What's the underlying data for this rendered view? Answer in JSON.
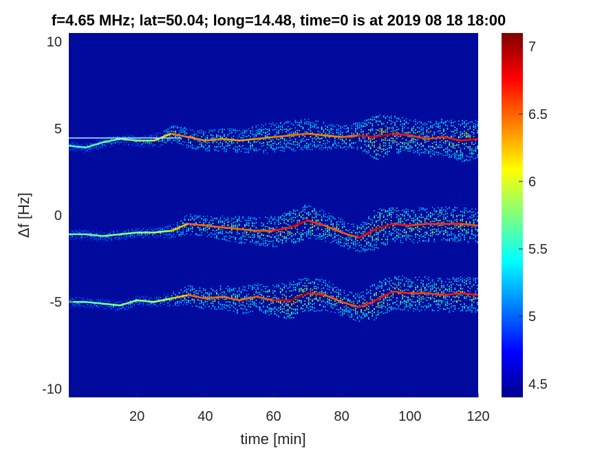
{
  "chart_data": {
    "type": "heatmap",
    "title": "f=4.65 MHz;  lat=50.04; long=14.48, time=0 is at 2019 08 18 18:00",
    "xlabel": "time [min]",
    "ylabel": "Δf [Hz]",
    "xlim": [
      0,
      120
    ],
    "ylim": [
      -10.5,
      10.5
    ],
    "xticks": [
      20,
      40,
      60,
      80,
      100,
      120
    ],
    "xtick_labels": [
      "20",
      "40",
      "60",
      "80",
      "100",
      "120"
    ],
    "yticks": [
      10,
      5,
      0,
      -5,
      -10
    ],
    "ytick_labels": [
      "10",
      "5",
      "0",
      "-5",
      "-10"
    ],
    "colorbar": {
      "range": [
        4.4,
        7.1
      ],
      "ticks": [
        7,
        6.5,
        6,
        5.5,
        5,
        4.5
      ],
      "tick_labels": [
        "7",
        "6.5",
        "6",
        "5.5",
        "5",
        "4.5"
      ],
      "colormap": "jet"
    },
    "background_color": "#000a9c",
    "series": [
      {
        "x": [
          0,
          5,
          10,
          15,
          20,
          25,
          30,
          35,
          40,
          45,
          50,
          55,
          60,
          65,
          70,
          75,
          80,
          85,
          90,
          95,
          100,
          105,
          110,
          115,
          120
        ],
        "y": [
          4.0,
          3.9,
          4.2,
          4.4,
          4.3,
          4.3,
          4.7,
          4.5,
          4.3,
          4.4,
          4.3,
          4.4,
          4.5,
          4.6,
          4.7,
          4.6,
          4.5,
          4.6,
          4.5,
          4.7,
          4.6,
          4.4,
          4.5,
          4.3,
          4.4
        ],
        "intensity": [
          5.6,
          5.6,
          5.7,
          5.7,
          5.8,
          5.9,
          6.5,
          6.4,
          6.4,
          6.4,
          6.3,
          6.4,
          6.4,
          6.5,
          6.5,
          6.4,
          6.4,
          6.6,
          7.0,
          6.8,
          6.6,
          6.6,
          6.6,
          6.8,
          6.7
        ],
        "spread": [
          0.3,
          0.3,
          0.3,
          0.3,
          0.3,
          0.4,
          0.5,
          0.6,
          0.6,
          0.7,
          0.7,
          0.8,
          0.9,
          0.9,
          0.9,
          0.8,
          0.7,
          0.8,
          1.3,
          1.1,
          1.0,
          1.0,
          1.1,
          1.2,
          1.1
        ]
      },
      {
        "x": [
          0,
          5,
          10,
          15,
          20,
          25,
          30,
          35,
          40,
          45,
          50,
          55,
          60,
          65,
          70,
          75,
          80,
          85,
          90,
          95,
          100,
          105,
          110,
          115,
          120
        ],
        "y": [
          -1.1,
          -1.1,
          -1.2,
          -1.1,
          -1.0,
          -1.0,
          -0.9,
          -0.5,
          -0.6,
          -0.7,
          -0.8,
          -0.9,
          -0.9,
          -0.7,
          -0.3,
          -0.6,
          -1.0,
          -1.3,
          -0.8,
          -0.5,
          -0.6,
          -0.5,
          -0.5,
          -0.5,
          -0.6
        ],
        "intensity": [
          5.7,
          5.7,
          5.7,
          5.8,
          5.8,
          5.8,
          6.0,
          6.5,
          6.5,
          6.5,
          6.5,
          6.5,
          6.6,
          6.8,
          6.8,
          6.5,
          6.5,
          6.6,
          6.9,
          6.8,
          6.6,
          6.6,
          6.7,
          6.6,
          6.5
        ],
        "spread": [
          0.3,
          0.3,
          0.3,
          0.3,
          0.3,
          0.3,
          0.4,
          0.6,
          0.6,
          0.7,
          0.8,
          0.8,
          0.9,
          1.0,
          1.0,
          0.9,
          0.8,
          0.8,
          1.2,
          1.0,
          1.0,
          1.0,
          1.0,
          1.0,
          1.0
        ]
      },
      {
        "x": [
          0,
          5,
          10,
          15,
          20,
          25,
          30,
          35,
          40,
          45,
          50,
          55,
          60,
          65,
          70,
          75,
          80,
          85,
          90,
          95,
          100,
          105,
          110,
          115,
          120
        ],
        "y": [
          -5.0,
          -5.0,
          -5.1,
          -5.2,
          -4.9,
          -5.0,
          -4.8,
          -4.6,
          -4.8,
          -4.7,
          -4.9,
          -4.7,
          -4.9,
          -4.9,
          -4.5,
          -4.6,
          -5.0,
          -5.3,
          -4.9,
          -4.4,
          -4.5,
          -4.5,
          -4.6,
          -4.5,
          -4.6
        ],
        "intensity": [
          5.7,
          5.7,
          5.7,
          5.8,
          5.8,
          5.8,
          6.0,
          6.5,
          6.5,
          6.5,
          6.5,
          6.5,
          6.6,
          7.0,
          6.9,
          6.5,
          6.5,
          6.6,
          6.8,
          6.7,
          6.6,
          6.6,
          6.6,
          6.8,
          6.6
        ],
        "spread": [
          0.3,
          0.3,
          0.3,
          0.3,
          0.3,
          0.3,
          0.4,
          0.6,
          0.6,
          0.7,
          0.8,
          0.8,
          0.9,
          1.1,
          1.0,
          0.9,
          0.8,
          0.8,
          1.1,
          1.0,
          1.0,
          1.0,
          1.0,
          1.0,
          1.0
        ]
      }
    ],
    "reference_line": {
      "y": 4.45,
      "x_from": 0,
      "x_to": 33
    }
  }
}
